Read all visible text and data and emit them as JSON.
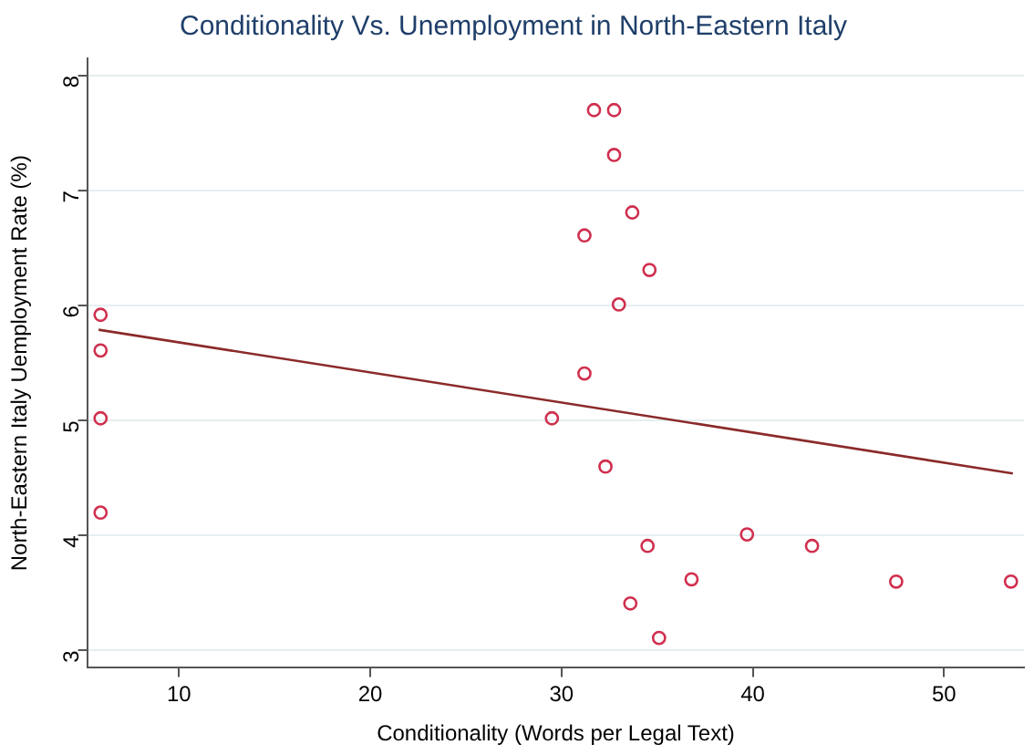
{
  "chart_data": {
    "type": "scatter",
    "title": "Conditionality Vs. Unemployment in North-Eastern Italy",
    "xlabel": "Conditionality (Words per Legal Text)",
    "ylabel": "North-Eastern Italy Uemployment Rate (%)",
    "xlim": [
      5.2,
      54.2
    ],
    "ylim": [
      2.85,
      8.15
    ],
    "xticks": [
      10,
      20,
      30,
      40,
      50
    ],
    "yticks": [
      3,
      4,
      5,
      6,
      7,
      8
    ],
    "grid": "y",
    "legend": false,
    "marker": "circle",
    "series": [
      {
        "color": "#d0304f",
        "x": [
          5.9,
          5.9,
          5.9,
          5.9,
          31.7,
          32.75,
          32.75,
          33.7,
          31.2,
          34.6,
          33.0,
          31.2,
          29.5,
          32.3,
          34.5,
          36.8,
          33.6,
          35.1,
          39.7,
          43.1,
          47.5,
          53.5
        ],
        "values": [
          5.92,
          5.61,
          5.02,
          4.2,
          7.7,
          7.7,
          7.31,
          6.81,
          6.61,
          6.31,
          6.01,
          5.41,
          5.02,
          4.6,
          3.91,
          3.62,
          3.41,
          3.11,
          4.01,
          3.91,
          3.6,
          3.6
        ]
      },
      {
        "type": "line",
        "marker": "none",
        "color": "#8b2a2a",
        "x": [
          5.8,
          53.6
        ],
        "values": [
          5.79,
          4.54
        ]
      }
    ]
  }
}
